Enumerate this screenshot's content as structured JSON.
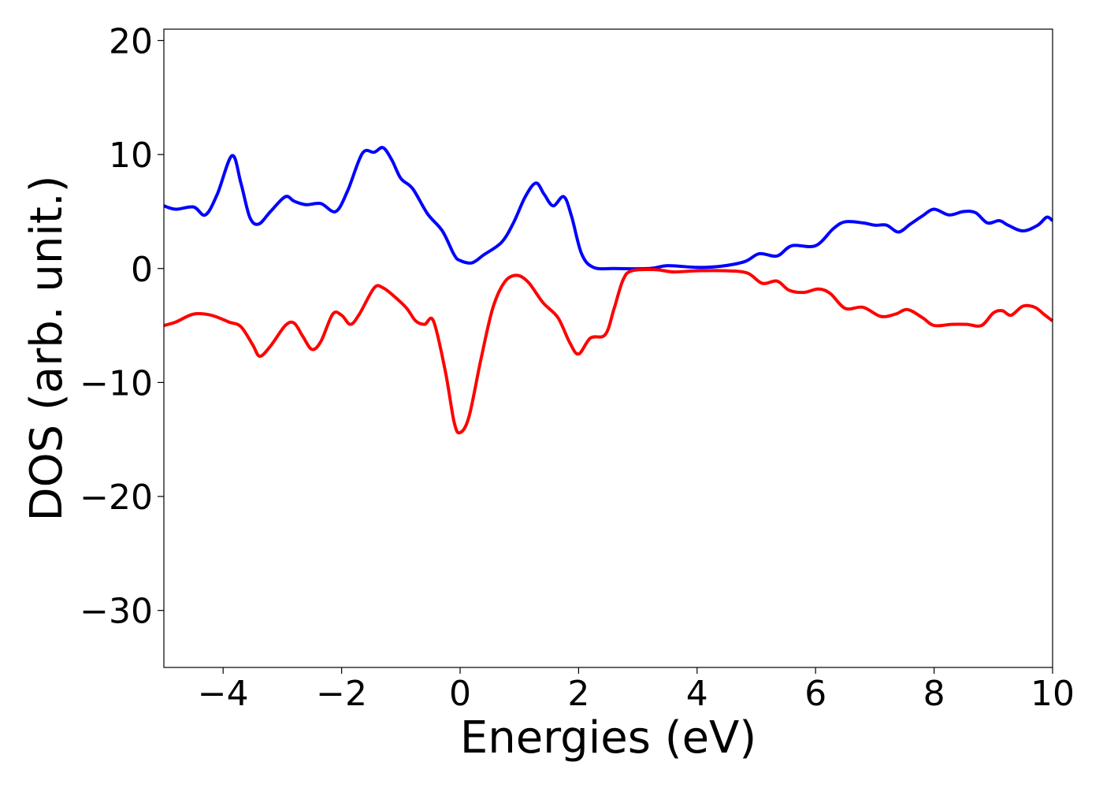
{
  "chart_data": {
    "type": "line",
    "title": "",
    "xlabel": "Energies (eV)",
    "ylabel": "DOS (arb. unit.)",
    "xlim": [
      -5,
      10
    ],
    "ylim": [
      -35,
      21
    ],
    "xticks": [
      -4,
      -2,
      0,
      2,
      4,
      6,
      8,
      10
    ],
    "yticks": [
      20,
      10,
      0,
      -10,
      -20,
      -30
    ],
    "xtick_labels": [
      "−4",
      "−2",
      "0",
      "2",
      "4",
      "6",
      "8",
      "10"
    ],
    "ytick_labels": [
      "20",
      "10",
      "0",
      "−10",
      "−20",
      "−30"
    ],
    "grid": false,
    "legend": "none",
    "series": [
      {
        "color": "#0000ff",
        "points": [
          [
            -5.0,
            5.5
          ],
          [
            -4.8,
            5.2
          ],
          [
            -4.5,
            5.4
          ],
          [
            -4.3,
            4.7
          ],
          [
            -4.1,
            6.5
          ],
          [
            -3.85,
            9.9
          ],
          [
            -3.7,
            7.5
          ],
          [
            -3.55,
            4.5
          ],
          [
            -3.4,
            3.9
          ],
          [
            -3.2,
            5.0
          ],
          [
            -2.95,
            6.3
          ],
          [
            -2.8,
            5.9
          ],
          [
            -2.6,
            5.6
          ],
          [
            -2.35,
            5.7
          ],
          [
            -2.1,
            5.0
          ],
          [
            -1.9,
            6.8
          ],
          [
            -1.65,
            10.1
          ],
          [
            -1.45,
            10.2
          ],
          [
            -1.3,
            10.6
          ],
          [
            -1.15,
            9.5
          ],
          [
            -1.0,
            7.9
          ],
          [
            -0.8,
            7.0
          ],
          [
            -0.55,
            4.8
          ],
          [
            -0.3,
            3.3
          ],
          [
            -0.1,
            1.2
          ],
          [
            0.0,
            0.7
          ],
          [
            0.2,
            0.5
          ],
          [
            0.4,
            1.2
          ],
          [
            0.7,
            2.3
          ],
          [
            0.9,
            4.0
          ],
          [
            1.1,
            6.3
          ],
          [
            1.28,
            7.5
          ],
          [
            1.42,
            6.5
          ],
          [
            1.57,
            5.5
          ],
          [
            1.75,
            6.3
          ],
          [
            1.88,
            4.6
          ],
          [
            2.05,
            1.3
          ],
          [
            2.25,
            0.1
          ],
          [
            2.6,
            0.0
          ],
          [
            3.2,
            0.0
          ],
          [
            3.5,
            0.25
          ],
          [
            4.0,
            0.1
          ],
          [
            4.4,
            0.2
          ],
          [
            4.8,
            0.6
          ],
          [
            5.05,
            1.3
          ],
          [
            5.35,
            1.1
          ],
          [
            5.6,
            2.0
          ],
          [
            6.0,
            2.0
          ],
          [
            6.3,
            3.5
          ],
          [
            6.5,
            4.1
          ],
          [
            6.8,
            4.0
          ],
          [
            7.0,
            3.8
          ],
          [
            7.2,
            3.8
          ],
          [
            7.4,
            3.2
          ],
          [
            7.6,
            3.9
          ],
          [
            7.8,
            4.6
          ],
          [
            8.0,
            5.2
          ],
          [
            8.25,
            4.7
          ],
          [
            8.5,
            5.0
          ],
          [
            8.7,
            4.9
          ],
          [
            8.9,
            4.0
          ],
          [
            9.1,
            4.2
          ],
          [
            9.25,
            3.8
          ],
          [
            9.5,
            3.3
          ],
          [
            9.75,
            3.8
          ],
          [
            9.9,
            4.5
          ],
          [
            10.0,
            4.2
          ]
        ]
      },
      {
        "color": "#ff0000",
        "points": [
          [
            -5.0,
            -5.0
          ],
          [
            -4.8,
            -4.7
          ],
          [
            -4.5,
            -4.0
          ],
          [
            -4.2,
            -4.1
          ],
          [
            -3.9,
            -4.7
          ],
          [
            -3.7,
            -5.1
          ],
          [
            -3.5,
            -6.7
          ],
          [
            -3.38,
            -7.7
          ],
          [
            -3.2,
            -6.8
          ],
          [
            -2.95,
            -5.0
          ],
          [
            -2.8,
            -4.8
          ],
          [
            -2.65,
            -6.0
          ],
          [
            -2.5,
            -7.1
          ],
          [
            -2.35,
            -6.4
          ],
          [
            -2.15,
            -4.0
          ],
          [
            -2.0,
            -4.1
          ],
          [
            -1.85,
            -4.9
          ],
          [
            -1.7,
            -4.0
          ],
          [
            -1.45,
            -1.7
          ],
          [
            -1.3,
            -1.7
          ],
          [
            -1.1,
            -2.5
          ],
          [
            -0.9,
            -3.5
          ],
          [
            -0.75,
            -4.6
          ],
          [
            -0.6,
            -4.9
          ],
          [
            -0.45,
            -4.6
          ],
          [
            -0.25,
            -9.0
          ],
          [
            -0.1,
            -13.5
          ],
          [
            0.0,
            -14.4
          ],
          [
            0.15,
            -13.0
          ],
          [
            0.35,
            -8.0
          ],
          [
            0.55,
            -3.5
          ],
          [
            0.75,
            -1.2
          ],
          [
            0.95,
            -0.6
          ],
          [
            1.15,
            -1.2
          ],
          [
            1.4,
            -3.0
          ],
          [
            1.65,
            -4.3
          ],
          [
            1.85,
            -6.5
          ],
          [
            2.0,
            -7.5
          ],
          [
            2.2,
            -6.1
          ],
          [
            2.45,
            -5.8
          ],
          [
            2.6,
            -3.5
          ],
          [
            2.75,
            -1.0
          ],
          [
            2.9,
            -0.2
          ],
          [
            3.3,
            -0.1
          ],
          [
            3.6,
            -0.3
          ],
          [
            4.0,
            -0.2
          ],
          [
            4.5,
            -0.2
          ],
          [
            4.85,
            -0.4
          ],
          [
            5.1,
            -1.3
          ],
          [
            5.35,
            -1.1
          ],
          [
            5.55,
            -1.9
          ],
          [
            5.8,
            -2.1
          ],
          [
            6.05,
            -1.8
          ],
          [
            6.25,
            -2.2
          ],
          [
            6.5,
            -3.5
          ],
          [
            6.8,
            -3.4
          ],
          [
            7.1,
            -4.2
          ],
          [
            7.35,
            -4.0
          ],
          [
            7.55,
            -3.6
          ],
          [
            7.8,
            -4.3
          ],
          [
            8.0,
            -5.0
          ],
          [
            8.3,
            -4.9
          ],
          [
            8.55,
            -4.9
          ],
          [
            8.8,
            -5.0
          ],
          [
            9.0,
            -3.9
          ],
          [
            9.15,
            -3.7
          ],
          [
            9.3,
            -4.1
          ],
          [
            9.5,
            -3.3
          ],
          [
            9.7,
            -3.4
          ],
          [
            9.85,
            -4.0
          ],
          [
            10.0,
            -4.6
          ]
        ]
      }
    ]
  }
}
